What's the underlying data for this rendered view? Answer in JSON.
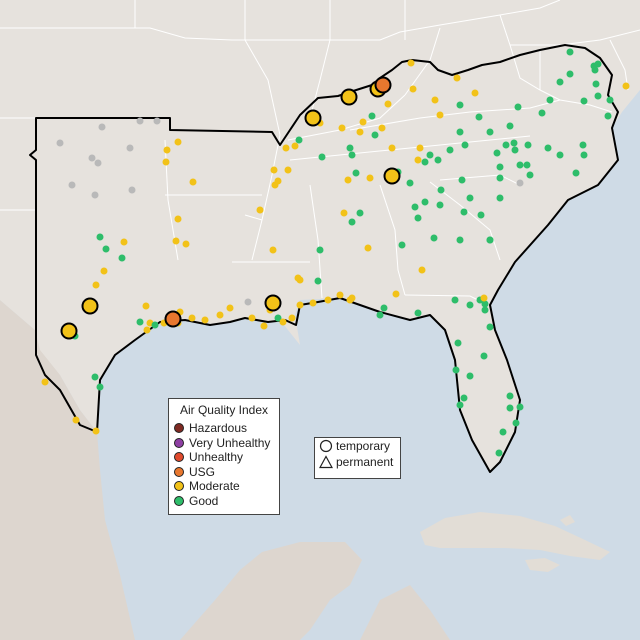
{
  "colors": {
    "ocean": "#cfdbe6",
    "land": "#e6e2dd",
    "land_mexico": "#ddd6cf",
    "state_line": "#ffffff",
    "region_outline": "#000000",
    "hazardous": "#7e2a22",
    "very_unhealthy": "#8e3fa3",
    "unhealthy": "#e04a2d",
    "usg": "#e8772e",
    "moderate": "#f2c218",
    "good": "#2ebd6a",
    "no_data": "#b9b9b9"
  },
  "aqi_legend": {
    "title": "Air Quality Index",
    "items": [
      {
        "label": "Hazardous",
        "color": "#7e2a22"
      },
      {
        "label": "Very Unhealthy",
        "color": "#8e3fa3"
      },
      {
        "label": "Unhealthy",
        "color": "#e04a2d"
      },
      {
        "label": "USG",
        "color": "#e8772e"
      },
      {
        "label": "Moderate",
        "color": "#f2c218"
      },
      {
        "label": "Good",
        "color": "#2ebd6a"
      }
    ]
  },
  "monitor_type_legend": {
    "items": [
      {
        "label": "temporary",
        "shape": "circle-icon"
      },
      {
        "label": "permanent",
        "shape": "triangle-icon"
      }
    ]
  }
}
